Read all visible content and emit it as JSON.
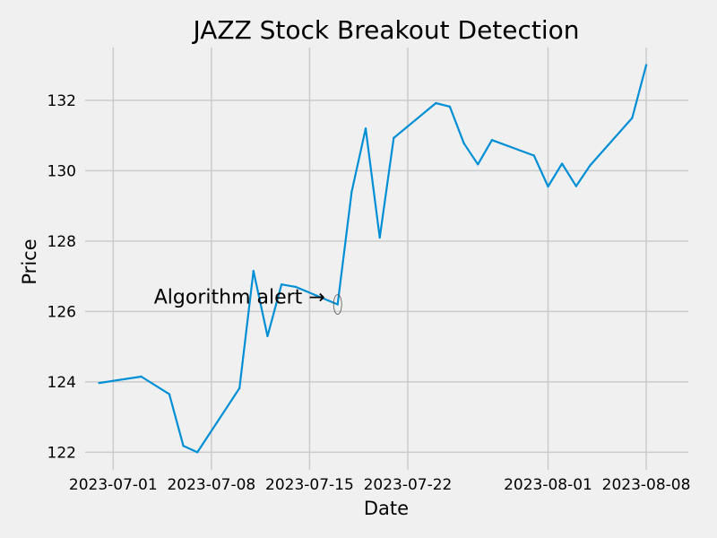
{
  "chart_data": {
    "type": "line",
    "title": "JAZZ Stock Breakout Detection",
    "xlabel": "Date",
    "ylabel": "Price",
    "x_ticks": [
      "2023-07-01",
      "2023-07-08",
      "2023-07-15",
      "2023-07-22",
      "2023-08-01",
      "2023-08-08"
    ],
    "y_ticks": [
      122,
      124,
      126,
      128,
      130,
      132
    ],
    "xlim": [
      "2023-06-29",
      "2023-08-11"
    ],
    "ylim": [
      121.5,
      133.5
    ],
    "grid": true,
    "line_color": "#008fd5",
    "x": [
      "2023-06-30",
      "2023-07-03",
      "2023-07-05",
      "2023-07-06",
      "2023-07-07",
      "2023-07-10",
      "2023-07-11",
      "2023-07-12",
      "2023-07-13",
      "2023-07-14",
      "2023-07-17",
      "2023-07-18",
      "2023-07-19",
      "2023-07-20",
      "2023-07-21",
      "2023-07-24",
      "2023-07-25",
      "2023-07-26",
      "2023-07-27",
      "2023-07-28",
      "2023-07-31",
      "2023-08-01",
      "2023-08-02",
      "2023-08-03",
      "2023-08-04",
      "2023-08-07",
      "2023-08-08"
    ],
    "values": [
      123.97,
      124.15,
      123.65,
      122.18,
      122.0,
      123.82,
      127.15,
      125.3,
      126.77,
      126.7,
      126.2,
      129.4,
      131.2,
      128.1,
      130.93,
      131.92,
      131.82,
      130.78,
      130.18,
      130.87,
      130.43,
      129.55,
      130.2,
      129.56,
      130.15,
      131.5,
      133.0
    ],
    "annotations": [
      {
        "text": "Algorithm alert →",
        "x": "2023-07-17",
        "y": 126.2
      }
    ]
  }
}
